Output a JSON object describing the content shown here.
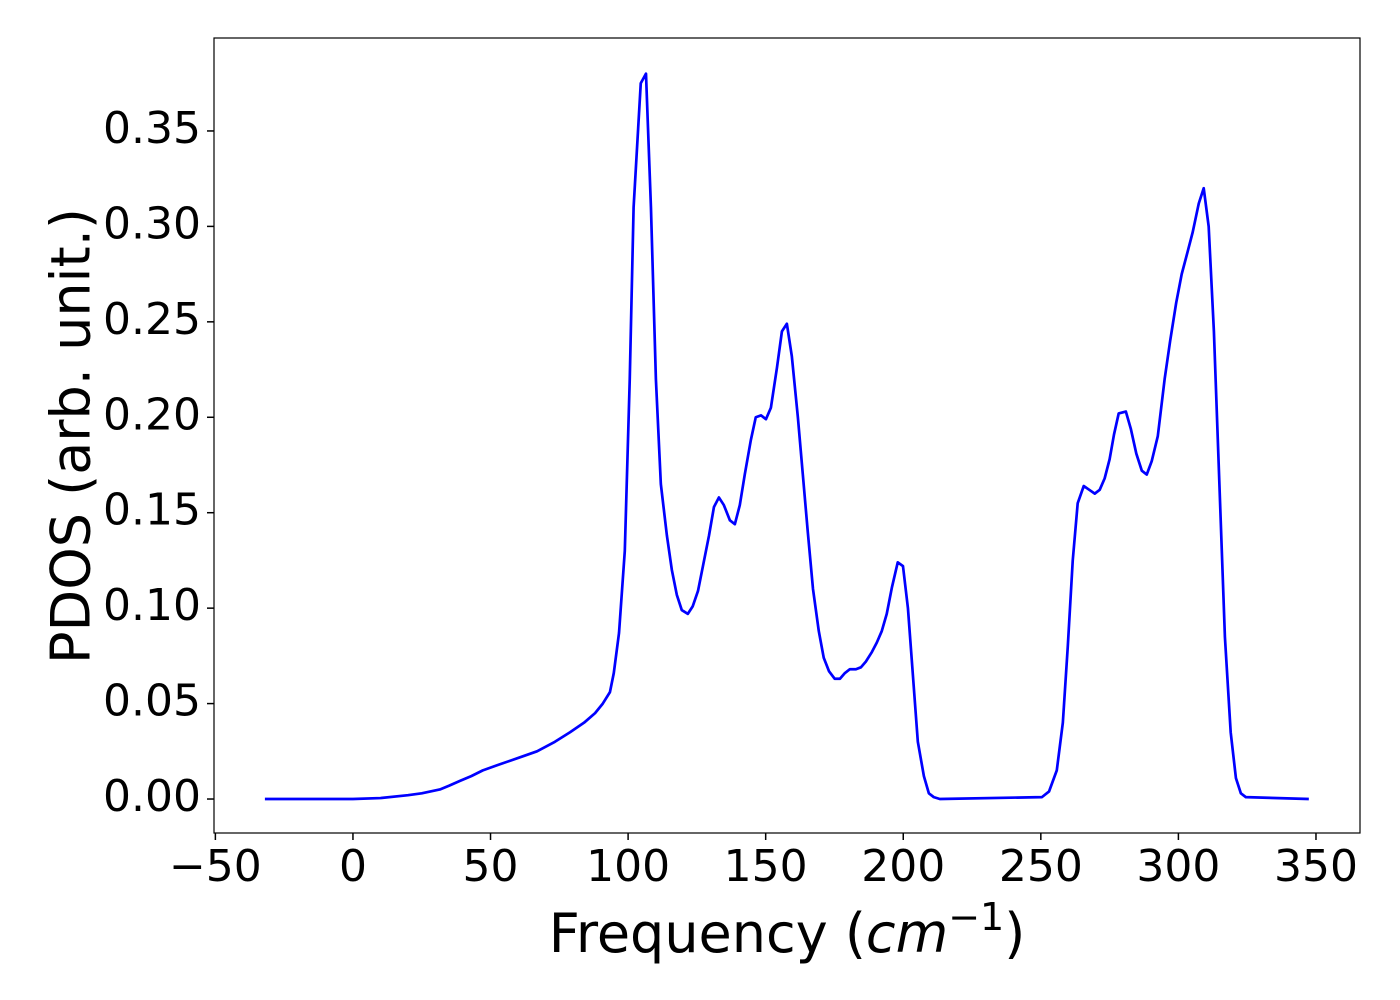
{
  "chart_data": {
    "type": "line",
    "y_label": "PDOS (arb. unit.)",
    "x_label": {
      "text": "Frequency (",
      "unit": "cm",
      "exponent": "−1",
      "close": ")"
    },
    "x": [
      -32,
      0,
      10,
      20,
      25,
      31.6,
      35,
      38.9,
      43,
      47.2,
      52,
      57,
      62,
      66.9,
      73.4,
      78.9,
      84,
      88,
      90.8,
      93.4,
      94.8,
      96.7,
      98.8,
      100.6,
      102,
      104.6,
      106.5,
      108.3,
      110.1,
      111.9,
      114.1,
      115.9,
      117.7,
      119.5,
      121.7,
      123.5,
      125.4,
      127.2,
      129.4,
      131.2,
      133,
      134.8,
      137,
      138.8,
      140.6,
      142.4,
      144.6,
      146.4,
      148.3,
      150.1,
      151.9,
      154.1,
      155.9,
      157.7,
      159.5,
      161.7,
      163.5,
      165.3,
      167.2,
      169.3,
      171.1,
      173,
      175.1,
      177,
      178.8,
      180.6,
      182.8,
      184.6,
      186.4,
      188.6,
      190.4,
      192.2,
      194,
      195.9,
      198,
      199.9,
      201.7,
      203.5,
      205.3,
      207.5,
      209.3,
      211.1,
      213.3,
      250.4,
      253,
      255.8,
      258,
      259.8,
      261.6,
      263.4,
      265.6,
      267.6,
      269.6,
      271.4,
      273.2,
      275,
      276.6,
      278.3,
      280.9,
      282.7,
      284.7,
      286.7,
      288.5,
      290.3,
      292.5,
      295,
      297,
      299.2,
      301.2,
      303.4,
      305.2,
      307.4,
      309.2,
      311,
      312.9,
      314.9,
      316.9,
      319,
      320.9,
      322.7,
      324.5,
      347.4
    ],
    "series": [
      {
        "color": "#0000ff",
        "values": [
          0,
          0,
          0.0005,
          0.002,
          0.003,
          0.005,
          0.007,
          0.0095,
          0.012,
          0.015,
          0.0175,
          0.02,
          0.0225,
          0.025,
          0.03,
          0.035,
          0.04,
          0.045,
          0.05,
          0.056,
          0.066,
          0.087,
          0.13,
          0.22,
          0.31,
          0.375,
          0.38,
          0.31,
          0.22,
          0.165,
          0.138,
          0.12,
          0.107,
          0.099,
          0.097,
          0.101,
          0.109,
          0.122,
          0.138,
          0.153,
          0.158,
          0.154,
          0.146,
          0.144,
          0.154,
          0.17,
          0.188,
          0.2,
          0.201,
          0.199,
          0.205,
          0.226,
          0.245,
          0.249,
          0.232,
          0.2,
          0.17,
          0.14,
          0.11,
          0.088,
          0.074,
          0.067,
          0.063,
          0.063,
          0.066,
          0.068,
          0.068,
          0.069,
          0.072,
          0.077,
          0.082,
          0.088,
          0.097,
          0.111,
          0.124,
          0.122,
          0.1,
          0.065,
          0.03,
          0.012,
          0.003,
          0.001,
          0,
          0.001,
          0.004,
          0.015,
          0.04,
          0.08,
          0.125,
          0.155,
          0.164,
          0.162,
          0.16,
          0.162,
          0.168,
          0.178,
          0.191,
          0.202,
          0.203,
          0.194,
          0.181,
          0.172,
          0.17,
          0.177,
          0.19,
          0.22,
          0.24,
          0.26,
          0.275,
          0.287,
          0.297,
          0.312,
          0.32,
          0.3,
          0.245,
          0.165,
          0.085,
          0.035,
          0.011,
          0.003,
          0.001,
          0
        ]
      }
    ],
    "xlim": [
      -50.5,
      366
    ],
    "ylim": [
      -0.0178,
      0.3987
    ],
    "xticks": [
      {
        "value": -50,
        "label": "−50"
      },
      0,
      50,
      100,
      150,
      200,
      250,
      300,
      350
    ],
    "yticks": [
      {
        "value": 0,
        "label": "0.00"
      },
      {
        "value": 0.05,
        "label": "0.05"
      },
      {
        "value": 0.1,
        "label": "0.10"
      },
      {
        "value": 0.15,
        "label": "0.15"
      },
      {
        "value": 0.2,
        "label": "0.20"
      },
      {
        "value": 0.25,
        "label": "0.25"
      },
      {
        "value": 0.3,
        "label": "0.30"
      },
      {
        "value": 0.35,
        "label": "0.35"
      }
    ],
    "grid": false
  }
}
